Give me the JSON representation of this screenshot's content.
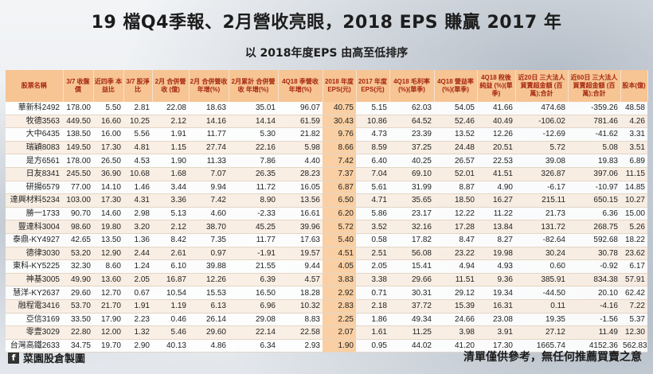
{
  "title": "19 檔Q4季報、2月營收亮眼，2018 EPS 賺贏 2017 年",
  "subtitle": "以 2018年度EPS 由高至低排序",
  "headers": [
    "股票名稱",
    "3/7 收盤價",
    "近四季 本益比",
    "3/7 股淨比",
    "2月 合併營收 (億)",
    "2月 合併營收 年增(%)",
    "2月累計 合併營收 年增(%)",
    "4Q18 季營收 年增(%)",
    "2018 年度 EPS(元)",
    "2017 年度 EPS(元)",
    "4Q18 毛利率 (%)(單季)",
    "4Q18 營益率 (%)(單季)",
    "4Q18 稅後純益 (%)(單季)",
    "近20日 三大法人 買賣超金額 (百萬);合計",
    "近60日 三大法人 買賣超金額 (百萬);合計",
    "股本(億)"
  ],
  "rows": [
    [
      "華新科2492",
      "178.00",
      "5.50",
      "2.81",
      "22.08",
      "18.63",
      "35.01",
      "96.07",
      "40.75",
      "5.15",
      "62.03",
      "54.05",
      "41.66",
      "474.68",
      "-359.26",
      "48.58"
    ],
    [
      "牧德3563",
      "449.50",
      "16.60",
      "10.25",
      "2.12",
      "14.16",
      "14.14",
      "61.59",
      "30.43",
      "10.86",
      "64.52",
      "52.46",
      "40.49",
      "-106.02",
      "781.46",
      "4.26"
    ],
    [
      "大中6435",
      "138.50",
      "16.00",
      "5.56",
      "1.91",
      "11.77",
      "5.30",
      "21.82",
      "9.76",
      "4.73",
      "23.39",
      "13.52",
      "12.26",
      "-12.69",
      "-41.62",
      "3.31"
    ],
    [
      "瑞穎8083",
      "149.50",
      "17.30",
      "4.81",
      "1.15",
      "27.74",
      "22.16",
      "5.98",
      "8.66",
      "8.59",
      "37.25",
      "24.48",
      "20.51",
      "5.72",
      "5.08",
      "3.51"
    ],
    [
      "是方6561",
      "178.00",
      "26.50",
      "4.53",
      "1.90",
      "11.33",
      "7.86",
      "4.40",
      "7.42",
      "6.40",
      "40.25",
      "26.57",
      "22.53",
      "39.08",
      "19.83",
      "6.89"
    ],
    [
      "日友8341",
      "245.50",
      "36.90",
      "10.68",
      "1.68",
      "7.07",
      "26.35",
      "28.23",
      "7.37",
      "7.04",
      "69.10",
      "52.01",
      "41.51",
      "326.87",
      "397.06",
      "11.15"
    ],
    [
      "研揚6579",
      "77.00",
      "14.10",
      "1.46",
      "3.44",
      "9.94",
      "11.72",
      "16.05",
      "6.87",
      "5.61",
      "31.99",
      "8.87",
      "4.90",
      "-6.17",
      "-10.97",
      "14.85"
    ],
    [
      "達興材料5234",
      "103.00",
      "17.30",
      "4.31",
      "3.36",
      "7.42",
      "8.90",
      "13.56",
      "6.50",
      "4.71",
      "35.65",
      "18.50",
      "16.27",
      "215.11",
      "650.15",
      "10.27"
    ],
    [
      "勝一1733",
      "90.70",
      "14.60",
      "2.98",
      "5.13",
      "4.60",
      "-2.33",
      "16.61",
      "6.20",
      "5.86",
      "23.17",
      "12.22",
      "11.22",
      "21.73",
      "6.36",
      "15.00"
    ],
    [
      "豐達科3004",
      "98.60",
      "19.80",
      "3.20",
      "2.12",
      "38.70",
      "45.25",
      "39.96",
      "5.72",
      "3.52",
      "32.16",
      "17.28",
      "13.84",
      "131.72",
      "268.75",
      "5.26"
    ],
    [
      "泰鼎-KY4927",
      "42.65",
      "13.50",
      "1.36",
      "8.42",
      "7.35",
      "11.77",
      "17.63",
      "5.40",
      "0.58",
      "17.82",
      "8.47",
      "8.27",
      "-82.64",
      "592.68",
      "18.22"
    ],
    [
      "德律3030",
      "53.20",
      "12.90",
      "2.44",
      "2.61",
      "0.97",
      "-1.91",
      "19.57",
      "4.51",
      "2.51",
      "56.08",
      "23.22",
      "19.98",
      "30.24",
      "30.78",
      "23.62"
    ],
    [
      "東科-KY5225",
      "32.30",
      "8.60",
      "1.24",
      "6.10",
      "39.88",
      "21.55",
      "9.44",
      "4.05",
      "2.05",
      "15.41",
      "4.94",
      "4.93",
      "0.60",
      "-0.92",
      "6.17"
    ],
    [
      "神基3005",
      "49.90",
      "13.60",
      "2.05",
      "16.87",
      "12.26",
      "6.39",
      "4.57",
      "3.83",
      "3.38",
      "29.66",
      "11.51",
      "9.36",
      "385.91",
      "834.38",
      "57.91"
    ],
    [
      "慧洋-KY2637",
      "29.60",
      "12.70",
      "0.67",
      "10.54",
      "15.53",
      "16.50",
      "18.28",
      "2.92",
      "0.71",
      "30.31",
      "29.12",
      "19.34",
      "-44.50",
      "20.10",
      "62.42"
    ],
    [
      "融程電3416",
      "53.70",
      "21.70",
      "1.91",
      "1.19",
      "6.13",
      "6.96",
      "10.32",
      "2.83",
      "2.18",
      "37.72",
      "15.39",
      "16.31",
      "0.11",
      "-4.16",
      "7.22"
    ],
    [
      "亞信3169",
      "33.50",
      "17.90",
      "2.23",
      "0.46",
      "26.14",
      "29.08",
      "8.83",
      "2.25",
      "1.86",
      "49.34",
      "24.66",
      "23.08",
      "19.35",
      "-1.56",
      "5.37"
    ],
    [
      "零壹3029",
      "22.80",
      "12.00",
      "1.32",
      "5.46",
      "29.60",
      "22.14",
      "22.58",
      "2.07",
      "1.61",
      "11.25",
      "3.98",
      "3.91",
      "27.12",
      "11.49",
      "12.30"
    ],
    [
      "台灣高鐵2633",
      "34.75",
      "19.70",
      "2.90",
      "40.13",
      "4.86",
      "6.34",
      "2.93",
      "1.90",
      "0.95",
      "44.02",
      "41.20",
      "17.30",
      "1665.74",
      "4152.36",
      "562.83"
    ]
  ],
  "footer": {
    "brand_icon": "facebook-icon",
    "brand": "菜園股倉製圖",
    "disclaimer": "清單僅供參考，無任何推薦買賣之意"
  },
  "colors": {
    "header_bg": "#f7c493",
    "header_text": "#a5280e",
    "eps_highlight": "#f9cfa3"
  }
}
